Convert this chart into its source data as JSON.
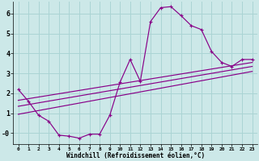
{
  "xlabel": "Windchill (Refroidissement éolien,°C)",
  "bg_color": "#cce8e8",
  "grid_color": "#aad4d4",
  "line_color": "#880088",
  "marker": "+",
  "xlim": [
    -0.5,
    23.5
  ],
  "ylim": [
    -0.55,
    6.6
  ],
  "yticks": [
    0,
    1,
    2,
    3,
    4,
    5,
    6
  ],
  "ytick_labels": [
    "-0",
    "1",
    "2",
    "3",
    "4",
    "5",
    "6"
  ],
  "xticks": [
    0,
    1,
    2,
    3,
    4,
    5,
    6,
    7,
    8,
    9,
    10,
    11,
    12,
    13,
    14,
    15,
    16,
    17,
    18,
    19,
    20,
    21,
    22,
    23
  ],
  "curve_x": [
    0,
    1,
    2,
    3,
    4,
    5,
    6,
    7,
    8,
    9,
    10,
    11,
    12,
    13,
    14,
    15,
    16,
    17,
    18,
    19,
    20,
    21,
    22,
    23
  ],
  "curve_y": [
    2.2,
    1.6,
    0.9,
    0.6,
    -0.1,
    -0.15,
    -0.25,
    -0.05,
    -0.05,
    0.9,
    2.55,
    3.7,
    2.6,
    5.6,
    6.3,
    6.35,
    5.9,
    5.4,
    5.2,
    4.1,
    3.55,
    3.35,
    3.7,
    3.7
  ],
  "line1_x": [
    0,
    23
  ],
  "line1_y": [
    1.65,
    3.55
  ],
  "line2_x": [
    0,
    23
  ],
  "line2_y": [
    1.35,
    3.35
  ],
  "line3_x": [
    0,
    23
  ],
  "line3_y": [
    0.95,
    3.1
  ],
  "xlabel_fontsize": 5.5,
  "ytick_fontsize": 6.0,
  "xtick_fontsize": 4.5
}
